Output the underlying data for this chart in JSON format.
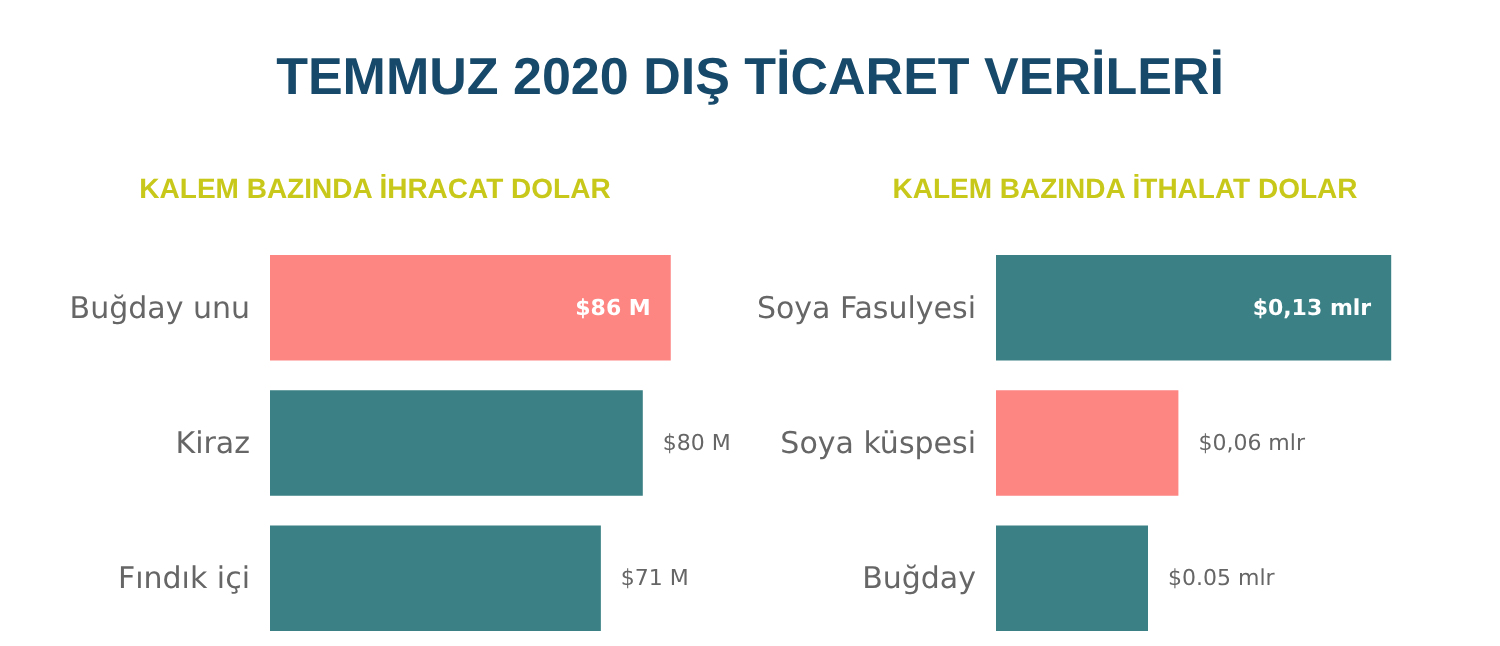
{
  "chart_data": [
    {
      "type": "bar",
      "orientation": "horizontal",
      "title": "TEMMUZ 2020 DIŞ TİCARET VERİLERİ",
      "subtitle": "KALEM BAZINDA İHRACAT DOLAR",
      "categories": [
        "Buğday unu",
        "Kiraz",
        "Fındık içi"
      ],
      "values": [
        86,
        80,
        71
      ],
      "colors": [
        "#fd8582",
        "#3a8085",
        "#3a8085"
      ],
      "value_labels": [
        "$86 M",
        "$80 M",
        "$71 M"
      ],
      "tick_labels": "y"
    },
    {
      "type": "bar",
      "orientation": "horizontal",
      "subtitle": "KALEM BAZINDA İTHALAT DOLAR",
      "categories": [
        "Soya Fasulyesi",
        "Soya küspesi",
        "Buğday"
      ],
      "values": [
        0.13,
        0.06,
        0.05
      ],
      "colors": [
        "#3a8085",
        "#fd8582",
        "#3a8085"
      ],
      "value_labels": [
        "$0,13 mlr",
        "$0,06 mlr",
        "$0.05 mlr"
      ],
      "tick_labels": "y"
    }
  ]
}
